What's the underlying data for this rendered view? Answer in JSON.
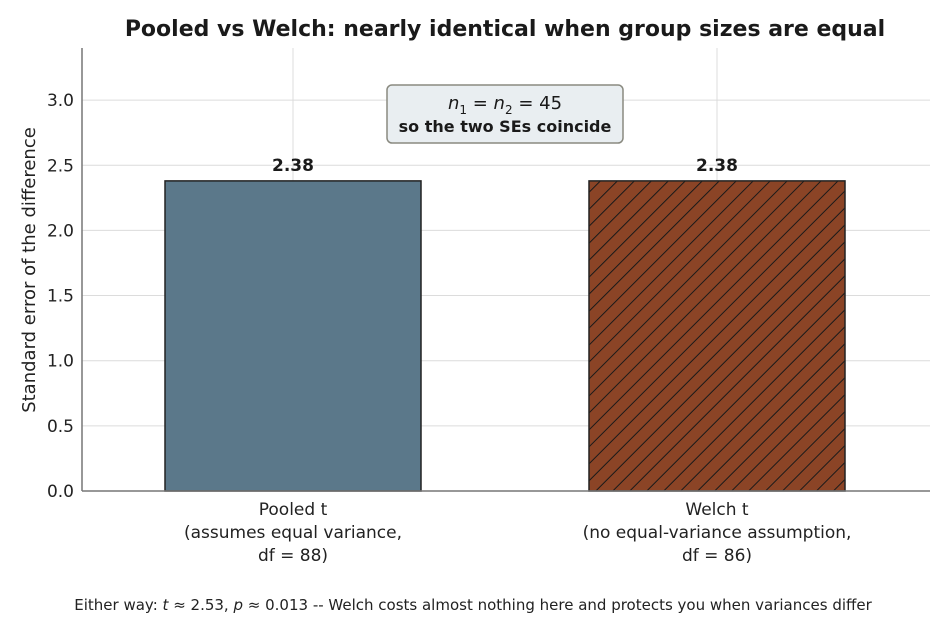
{
  "chart_data": {
    "type": "bar",
    "title": "Pooled vs Welch: nearly identical when group sizes are equal",
    "ylabel": "Standard error of the difference",
    "xlabel": "",
    "ylim": [
      0,
      3.4
    ],
    "yticks": [
      "0.0",
      "0.5",
      "1.0",
      "1.5",
      "2.0",
      "2.5",
      "3.0"
    ],
    "grid": true,
    "categories": [
      [
        "Pooled t",
        "(assumes equal variance,",
        "df = 88)"
      ],
      [
        "Welch t",
        "(no equal-variance assumption,",
        "df = 86)"
      ]
    ],
    "values": [
      2.38,
      2.38
    ],
    "value_labels": [
      "2.38",
      "2.38"
    ],
    "colors": [
      "#5b788a",
      "#8b4426"
    ],
    "hatch": [
      false,
      true
    ],
    "annotation": {
      "line1_prefix": "n",
      "line1_sub1": "1",
      "line1_eq1": " = ",
      "line1_n2": "n",
      "line1_sub2": "2",
      "line1_eq2": " = 45",
      "line2": "so the two SEs coincide"
    },
    "footnote": {
      "part1": "Either way: ",
      "t": "t",
      "part2": " ≈ 2.53, ",
      "p": "p",
      "part3": " ≈ 0.013 -- Welch costs almost nothing here and protects you when variances differ"
    }
  }
}
